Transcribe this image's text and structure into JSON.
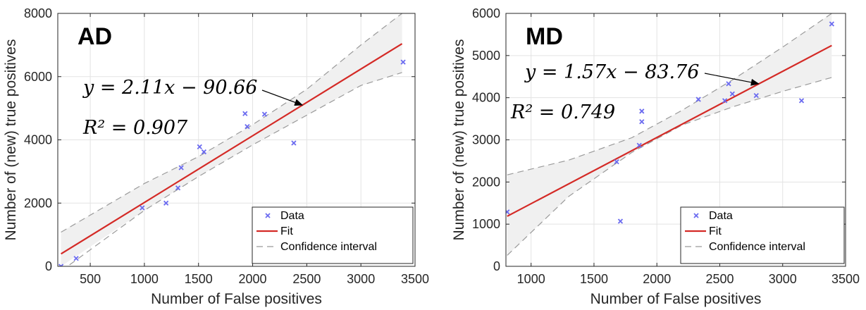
{
  "chart_data": [
    {
      "type": "scatter",
      "panel_label": "AD",
      "xlabel": "Number of False positives",
      "ylabel": "Number of (new) true positives",
      "xlim": [
        200,
        3500
      ],
      "ylim": [
        0,
        8000
      ],
      "xticks": [
        500,
        1000,
        1500,
        2000,
        2500,
        3000,
        3500
      ],
      "yticks": [
        0,
        2000,
        4000,
        6000,
        8000
      ],
      "grid": true,
      "legend_position": "bottom-right",
      "legend": [
        "Data",
        "Fit",
        "Confidence interval"
      ],
      "equation": "y = 2.11x − 90.66",
      "r2": "R² = 0.907",
      "fit": {
        "slope": 2.11,
        "intercept": -90.66,
        "x_range": [
          230,
          3380
        ]
      },
      "confidence_interval": {
        "x": [
          230,
          1000,
          1500,
          2000,
          2500,
          3000,
          3380
        ],
        "upper": [
          1080,
          2620,
          3470,
          4480,
          5600,
          7000,
          8000
        ],
        "lower": [
          -150,
          1770,
          2840,
          3840,
          4780,
          5720,
          6130
        ]
      },
      "points": [
        {
          "x": 230,
          "y": 0
        },
        {
          "x": 370,
          "y": 250
        },
        {
          "x": 980,
          "y": 1850
        },
        {
          "x": 1200,
          "y": 2000
        },
        {
          "x": 1310,
          "y": 2480
        },
        {
          "x": 1340,
          "y": 3120
        },
        {
          "x": 1510,
          "y": 3780
        },
        {
          "x": 1550,
          "y": 3620
        },
        {
          "x": 1930,
          "y": 4830
        },
        {
          "x": 1950,
          "y": 4420
        },
        {
          "x": 2110,
          "y": 4810
        },
        {
          "x": 2380,
          "y": 3900
        },
        {
          "x": 3390,
          "y": 6460
        }
      ],
      "annotation_arrow_to": {
        "x": 2460,
        "y": 5100
      }
    },
    {
      "type": "scatter",
      "panel_label": "MD",
      "xlabel": "Number of False positives",
      "ylabel": "Number of (new) true positives",
      "xlim": [
        800,
        3500
      ],
      "ylim": [
        0,
        6000
      ],
      "xticks": [
        1000,
        1500,
        2000,
        2500,
        3000,
        3500
      ],
      "yticks": [
        0,
        1000,
        2000,
        3000,
        4000,
        5000,
        6000
      ],
      "grid": true,
      "legend_position": "bottom-right",
      "legend": [
        "Data",
        "Fit",
        "Confidence interval"
      ],
      "equation": "y = 1.57x − 83.76",
      "r2": "R² = 0.749",
      "fit": {
        "slope": 1.57,
        "intercept": -83.76,
        "x_range": [
          810,
          3390
        ]
      },
      "confidence_interval": {
        "x": [
          810,
          1300,
          1800,
          2200,
          2600,
          3000,
          3390
        ],
        "upper": [
          2170,
          2520,
          3050,
          3700,
          4420,
          5200,
          6000
        ],
        "lower": [
          260,
          1660,
          2700,
          3350,
          3780,
          4150,
          4480
        ]
      },
      "points": [
        {
          "x": 810,
          "y": 1290
        },
        {
          "x": 1680,
          "y": 2480
        },
        {
          "x": 1710,
          "y": 1070
        },
        {
          "x": 1860,
          "y": 2870
        },
        {
          "x": 1880,
          "y": 3430
        },
        {
          "x": 1880,
          "y": 3680
        },
        {
          "x": 2330,
          "y": 3960
        },
        {
          "x": 2540,
          "y": 3930
        },
        {
          "x": 2570,
          "y": 4330
        },
        {
          "x": 2600,
          "y": 4090
        },
        {
          "x": 2790,
          "y": 4050
        },
        {
          "x": 3150,
          "y": 3930
        },
        {
          "x": 3390,
          "y": 5750
        }
      ],
      "annotation_arrow_to": {
        "x": 2810,
        "y": 4330
      }
    }
  ],
  "colors": {
    "data": "#6b6bf0",
    "fit": "#d42a26",
    "ci_fill": "#f0f0f0",
    "ci_line": "#9a9a9a",
    "grid": "#e3e3e3",
    "axis": "#262626"
  }
}
